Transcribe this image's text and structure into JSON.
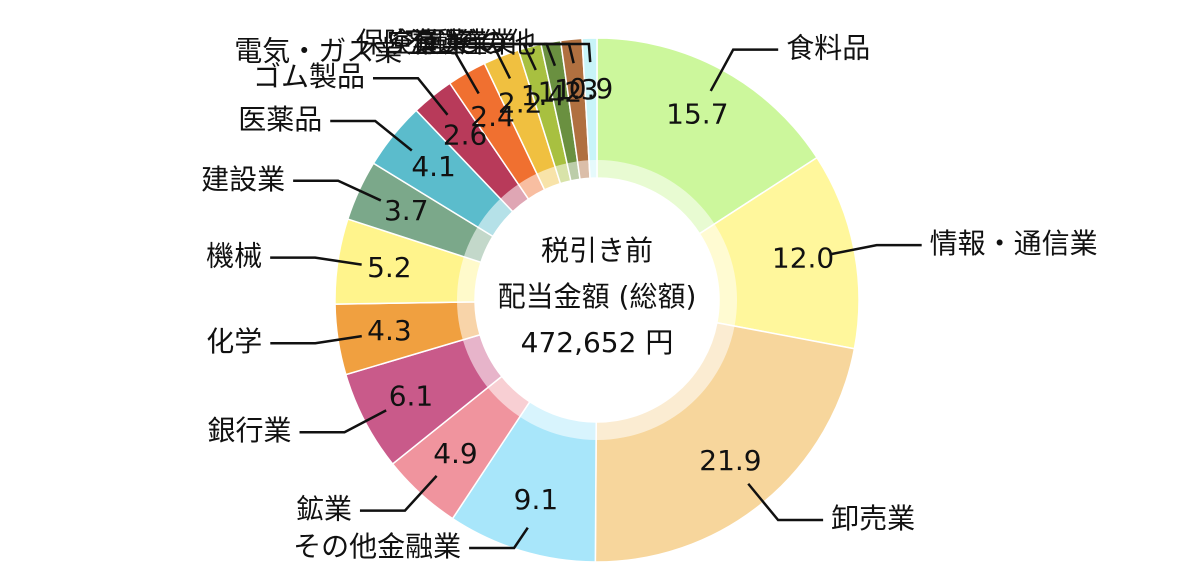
{
  "chart_data": {
    "type": "pie",
    "donut": true,
    "center_text": [
      "税引き前",
      "配当金額 (総額)",
      "472,652 円"
    ],
    "categories": [
      "食料品",
      "情報・通信業",
      "卸売業",
      "その他金融業",
      "鉱業",
      "銀行業",
      "化学",
      "機械",
      "建設業",
      "医薬品",
      "ゴム製品",
      "電気・ガス業",
      "保険業",
      "空運業",
      "海運業",
      "不動産業",
      "その他"
    ],
    "values": [
      15.7,
      12.0,
      21.9,
      9.1,
      4.9,
      6.1,
      4.3,
      5.2,
      3.7,
      4.1,
      2.6,
      2.4,
      2.2,
      1.4,
      1.2,
      1.3,
      0.9
    ],
    "value_labels": [
      "15.7",
      "12.0",
      "21.9",
      "9.1",
      "4.9",
      "6.1",
      "4.3",
      "5.2",
      "3.7",
      "4.1",
      "2.6",
      "2.4",
      "2.2",
      "1.4",
      "1.2",
      "1.3",
      "0.9"
    ],
    "colors": [
      "#ccf79c",
      "#fff79c",
      "#f7d69c",
      "#a8e6fa",
      "#f0949e",
      "#c95a8a",
      "#f0a040",
      "#fff48c",
      "#7ba88a",
      "#5bbccc",
      "#b83a5a",
      "#f07030",
      "#f0c040",
      "#a8c040",
      "#6a9040",
      "#b07040",
      "#c8f4f8"
    ]
  }
}
